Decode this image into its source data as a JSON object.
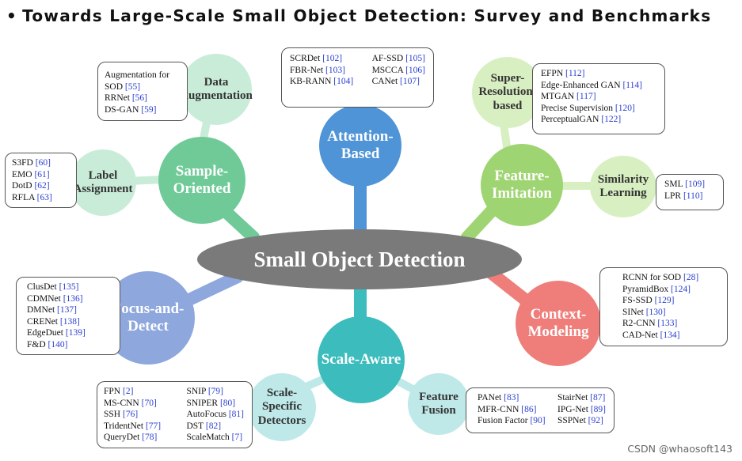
{
  "title": "Towards Large-Scale Small Object Detection: Survey and Benchmarks",
  "bullet": "•",
  "center": "Small Object Detection",
  "colors": {
    "center": "#7a7a7a",
    "attention": "#4f94d6",
    "feature_imitation": "#9fd472",
    "context": "#ef7e7a",
    "scale": "#3cbcbc",
    "focus": "#8ea7dd",
    "sample": "#6fca98"
  },
  "nodes": {
    "attention": "Attention-Based",
    "feature_imitation": "Feature-Imitation",
    "context": "Context-Modeling",
    "scale": "Scale-Aware",
    "focus": "Focus-and-Detect",
    "sample": "Sample-Oriented"
  },
  "subnodes": {
    "super_resolution": "Super-Resolution-based",
    "similarity": "Similarity Learning",
    "feature_fusion": "Feature Fusion",
    "scale_specific": "Scale-Specific Detectors",
    "label_assignment": "Label Assignment",
    "data_aug": "Data Augmentation"
  },
  "boxes": {
    "attention": {
      "left": [
        {
          "name": "SCRDet",
          "ref": "[102]"
        },
        {
          "name": "FBR-Net",
          "ref": "[103]"
        },
        {
          "name": "KB-RANN",
          "ref": "[104]"
        }
      ],
      "right": [
        {
          "name": "AF-SSD",
          "ref": "[105]"
        },
        {
          "name": "MSCCA",
          "ref": "[106]"
        },
        {
          "name": "CANet",
          "ref": "[107]"
        }
      ]
    },
    "super_resolution": [
      {
        "name": "EFPN",
        "ref": "[112]"
      },
      {
        "name": "Edge-Enhanced GAN",
        "ref": "[114]"
      },
      {
        "name": "MTGAN",
        "ref": "[117]"
      },
      {
        "name": "Precise Supervision",
        "ref": "[120]"
      },
      {
        "name": "PerceptualGAN",
        "ref": "[122]"
      }
    ],
    "similarity": [
      {
        "name": "SML",
        "ref": "[109]"
      },
      {
        "name": "LPR",
        "ref": "[110]"
      }
    ],
    "context": [
      {
        "name": "RCNN for SOD",
        "ref": "[28]"
      },
      {
        "name": "PyramidBox",
        "ref": "[124]"
      },
      {
        "name": "FS-SSD",
        "ref": "[129]"
      },
      {
        "name": "SINet",
        "ref": "[130]"
      },
      {
        "name": "R2-CNN",
        "ref": "[133]"
      },
      {
        "name": "CAD-Net",
        "ref": "[134]"
      }
    ],
    "feature_fusion": {
      "left": [
        {
          "name": "PANet",
          "ref": "[83]"
        },
        {
          "name": "MFR-CNN",
          "ref": "[86]"
        },
        {
          "name": "Fusion Factor",
          "ref": "[90]"
        }
      ],
      "right": [
        {
          "name": "StairNet",
          "ref": "[87]"
        },
        {
          "name": "IPG-Net",
          "ref": "[89]"
        },
        {
          "name": "SSPNet",
          "ref": "[92]"
        }
      ]
    },
    "scale_specific": {
      "left": [
        {
          "name": "FPN",
          "ref": "[2]"
        },
        {
          "name": "MS-CNN",
          "ref": "[70]"
        },
        {
          "name": "SSH",
          "ref": "[76]"
        },
        {
          "name": "TridentNet",
          "ref": "[77]"
        },
        {
          "name": "QueryDet",
          "ref": "[78]"
        }
      ],
      "right": [
        {
          "name": "SNIP",
          "ref": "[79]"
        },
        {
          "name": "SNIPER",
          "ref": "[80]"
        },
        {
          "name": "AutoFocus",
          "ref": "[81]"
        },
        {
          "name": "DST",
          "ref": "[82]"
        },
        {
          "name": "ScaleMatch",
          "ref": "[7]"
        }
      ]
    },
    "focus": [
      {
        "name": "ClusDet",
        "ref": "[135]"
      },
      {
        "name": "CDMNet",
        "ref": "[136]"
      },
      {
        "name": "DMNet",
        "ref": "[137]"
      },
      {
        "name": "CRENet",
        "ref": "[138]"
      },
      {
        "name": "EdgeDuet",
        "ref": "[139]"
      },
      {
        "name": "F&D",
        "ref": "[140]"
      }
    ],
    "label_assignment": [
      {
        "name": "S3FD",
        "ref": "[60]"
      },
      {
        "name": "EMO",
        "ref": "[61]"
      },
      {
        "name": "DotD",
        "ref": "[62]"
      },
      {
        "name": "RFLA",
        "ref": "[63]"
      }
    ],
    "data_aug": [
      {
        "name": "Augmentation for",
        "ref": ""
      },
      {
        "name": "SOD",
        "ref": "[55]"
      },
      {
        "name": "RRNet",
        "ref": "[56]"
      },
      {
        "name": "DS-GAN",
        "ref": "[59]"
      }
    ]
  },
  "watermark": "CSDN @whaosoft143"
}
